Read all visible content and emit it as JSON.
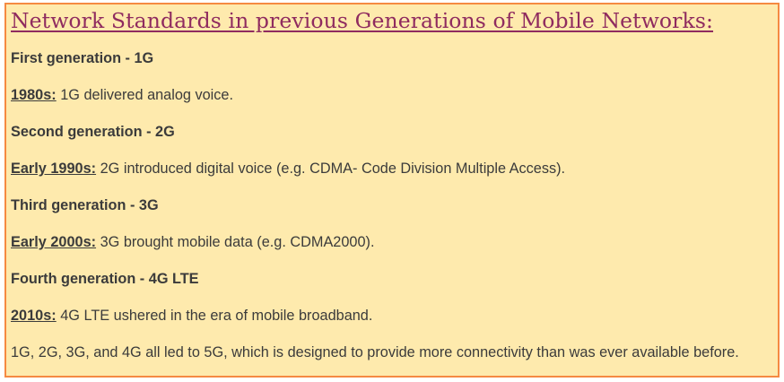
{
  "title": "Network Standards in previous Generations of Mobile Networks:",
  "sections": [
    {
      "heading": "First generation - 1G",
      "era": "1980s:",
      "text": " 1G delivered analog voice."
    },
    {
      "heading": "Second generation - 2G",
      "era": "Early 1990s:",
      "text": " 2G introduced digital voice (e.g. CDMA- Code Division Multiple Access)."
    },
    {
      "heading": "Third generation - 3G",
      "era": "Early 2000s:",
      "text": " 3G brought mobile data (e.g. CDMA2000)."
    },
    {
      "heading": "Fourth generation - 4G LTE",
      "era": "2010s:",
      "text": " 4G LTE ushered in the era of mobile broadband."
    }
  ],
  "conclusion": "1G, 2G, 3G, and 4G all led to 5G, which is designed to provide more connectivity than was ever available before.",
  "colors": {
    "background": "#feeaad",
    "border": "#f58a42",
    "title": "#8f2b5f",
    "text": "#3b3b3b"
  }
}
